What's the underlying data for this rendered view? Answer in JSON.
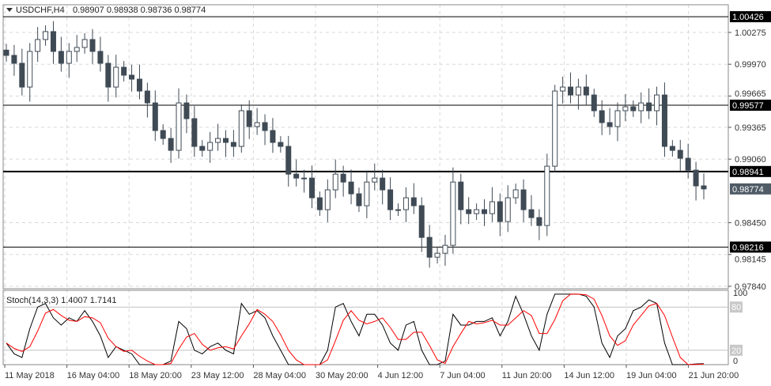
{
  "header": {
    "symbol": "USDCHF,H4",
    "ohlc": "0.98907 0.98938 0.98736 0.98774"
  },
  "colors": {
    "candle": "#3f4a55",
    "stoch_main": "#000000",
    "stoch_signal": "#ff0000",
    "level_line": "#000000",
    "current_price_bg": "#4f5b66",
    "grid": "#d8d8d8"
  },
  "chart_data": [
    {
      "type": "candlestick",
      "ylim": [
        0.9777,
        1.0048
      ],
      "y_ticks": [
        "1.00275",
        "0.99970",
        "0.99665",
        "0.99365",
        "0.99060",
        "0.98450",
        "0.98145",
        "0.97840"
      ],
      "x_ticks": [
        "11 May 2018",
        "16 May 04:00",
        "18 May 20:00",
        "23 May 12:00",
        "28 May 04:00",
        "30 May 20:00",
        "4 Jun 12:00",
        "7 Jun 04:00",
        "11 Jun 20:00",
        "14 Jun 12:00",
        "19 Jun 04:00",
        "21 Jun 20:00"
      ],
      "closes": [
        1.00055,
        0.99979,
        0.99751,
        1.00093,
        1.00207,
        1.00283,
        1.00093,
        0.99979,
        1.00093,
        1.00131,
        1.00207,
        1.00093,
        0.99979,
        0.99751,
        0.99941,
        0.99865,
        0.99827,
        0.99713,
        0.99599,
        0.99334,
        0.99258,
        0.99144,
        0.99599,
        0.99448,
        0.99182,
        0.99144,
        0.9922,
        0.99258,
        0.9922,
        0.99182,
        0.99524,
        0.99372,
        0.9941,
        0.99334,
        0.9922,
        0.99182,
        0.98916,
        0.98878,
        0.98878,
        0.98689,
        0.98575,
        0.98765,
        0.98916,
        0.9884,
        0.98727,
        0.98613,
        0.9884,
        0.98878,
        0.98765,
        0.98575,
        0.98575,
        0.98689,
        0.98613,
        0.98309,
        0.98119,
        0.98157,
        0.98233,
        0.9884,
        0.98575,
        0.98537,
        0.98575,
        0.98537,
        0.98651,
        0.98461,
        0.98689,
        0.98765,
        0.98575,
        0.98499,
        0.98423,
        0.98992,
        0.99713,
        0.99751,
        0.99675,
        0.99751,
        0.99675,
        0.99524,
        0.9941,
        0.99372,
        0.99524,
        0.99562,
        0.99524,
        0.99599,
        0.99524,
        0.99675,
        0.99182,
        0.99144,
        0.99068,
        0.98954,
        0.98803,
        0.98774
      ],
      "levels": [
        {
          "price": "1.00426",
          "value": 1.00426,
          "bold": false
        },
        {
          "price": "0.99577",
          "value": 0.99577,
          "bold": false
        },
        {
          "price": "0.98941",
          "value": 0.98941,
          "bold": true
        },
        {
          "price": "0.98216",
          "value": 0.98216,
          "bold": false
        }
      ],
      "current_price": {
        "label": "0.98774",
        "value": 0.98774
      }
    },
    {
      "type": "line",
      "title": "Stoch(14,3,3) 1.4007 1.7141",
      "ylim": [
        0,
        100
      ],
      "y_ticks": [
        "100",
        "80",
        "20",
        "0"
      ],
      "levels": [
        80,
        20
      ],
      "signal_period": 3,
      "main": [
        30,
        15,
        10,
        50,
        80,
        85,
        65,
        55,
        65,
        60,
        75,
        60,
        40,
        10,
        25,
        20,
        15,
        0,
        0,
        0,
        0,
        5,
        60,
        50,
        20,
        15,
        25,
        30,
        20,
        15,
        85,
        70,
        75,
        65,
        40,
        20,
        0,
        0,
        0,
        0,
        0,
        20,
        80,
        85,
        60,
        40,
        70,
        70,
        55,
        30,
        20,
        55,
        60,
        20,
        0,
        0,
        5,
        70,
        55,
        55,
        60,
        60,
        65,
        40,
        60,
        95,
        70,
        40,
        20,
        70,
        98,
        98,
        98,
        98,
        95,
        80,
        30,
        10,
        40,
        50,
        75,
        80,
        90,
        85,
        30,
        0,
        0,
        0,
        1,
        1.4
      ]
    }
  ]
}
